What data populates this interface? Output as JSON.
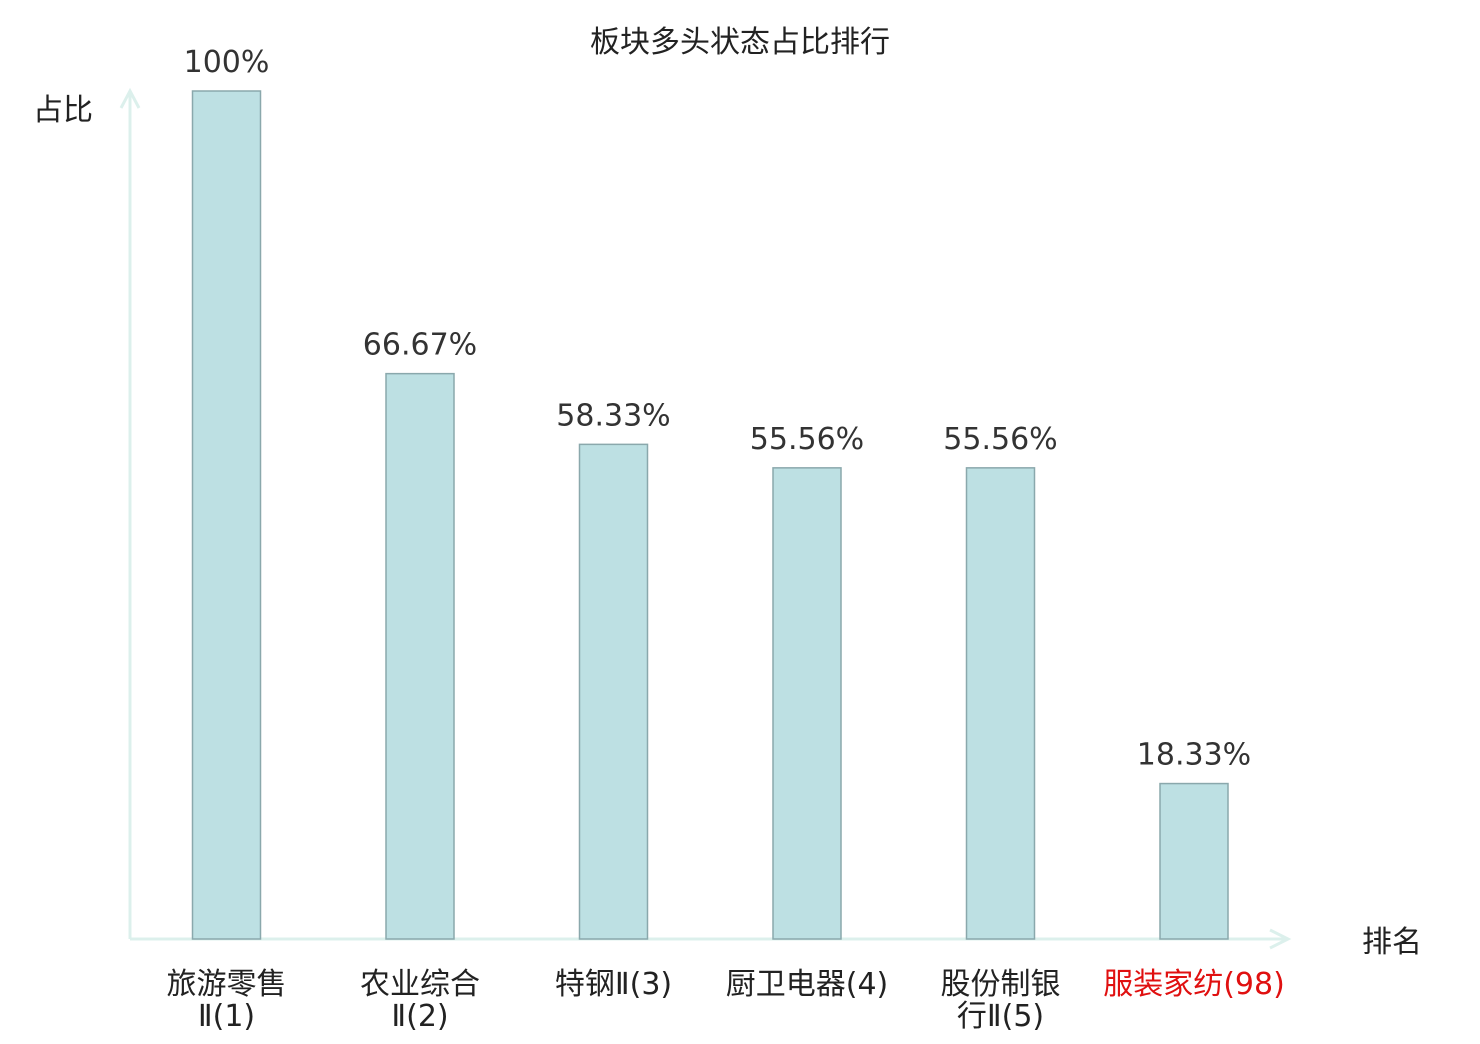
{
  "chart_data": {
    "type": "bar",
    "title": "板块多头状态占比排行",
    "ylabel": "占比",
    "xlabel": "排名",
    "categories": [
      [
        "旅游零售",
        "Ⅱ(1)"
      ],
      [
        "农业综合",
        "Ⅱ(2)"
      ],
      [
        "特钢Ⅱ(3)"
      ],
      [
        "厨卫电器(4)"
      ],
      [
        "股份制银",
        "行Ⅱ(5)"
      ],
      [
        "服装家纺(98)"
      ]
    ],
    "values": [
      100,
      66.67,
      58.33,
      55.56,
      55.56,
      18.33
    ],
    "value_labels": [
      "100%",
      "66.67%",
      "58.33%",
      "55.56%",
      "55.56%",
      "18.33%"
    ],
    "highlight_index": 5,
    "ylim": [
      0,
      100
    ],
    "grid": false,
    "colors": {
      "bar_fill": "#bde0e3",
      "bar_stroke": "#8aa8ac",
      "axis": "#dcf0ec",
      "text": "#333333",
      "highlight_text": "#e01010"
    }
  }
}
